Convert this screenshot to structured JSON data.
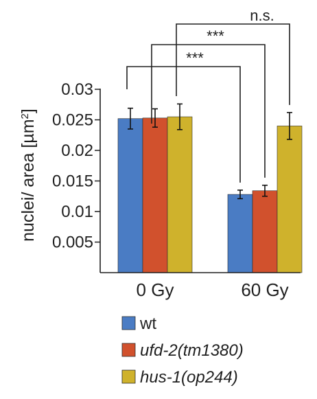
{
  "chart_data": {
    "type": "bar",
    "title": "",
    "xlabel": "",
    "ylabel": "nuclei/ area [µm²]",
    "ylabel_parts": {
      "main": "nuclei/ area [µm",
      "sup": "2",
      "end": "]"
    },
    "ylim": [
      0,
      0.03
    ],
    "yticks": [
      "0.03",
      "0.025",
      "0.02",
      "0.015",
      "0.01",
      "0.005"
    ],
    "ytick_values": [
      0.03,
      0.025,
      0.02,
      0.015,
      0.01,
      0.005
    ],
    "categories": [
      "0 Gy",
      "60 Gy"
    ],
    "series": [
      {
        "name": "wt",
        "italic": false,
        "color": "#4a7cc4",
        "values": [
          0.0252,
          0.0128
        ],
        "errors": [
          0.0017,
          0.0007
        ]
      },
      {
        "name": "ufd-2(tm1380)",
        "italic": true,
        "color": "#d1512d",
        "values": [
          0.0253,
          0.0134
        ],
        "errors": [
          0.0015,
          0.0009
        ]
      },
      {
        "name": "hus-1(op244)",
        "italic": true,
        "color": "#cfb22c",
        "values": [
          0.0255,
          0.024
        ],
        "errors": [
          0.0021,
          0.0022
        ]
      }
    ],
    "grid": false,
    "legend_position": "bottom",
    "annotations": [
      {
        "label": "***",
        "from_category": 0,
        "to_category": 1,
        "to_series": 0
      },
      {
        "label": "***",
        "from_category": 0,
        "to_category": 1,
        "to_series": 1
      },
      {
        "label": "n.s.",
        "from_category": 0,
        "to_category": 1,
        "to_series": 2
      }
    ]
  }
}
